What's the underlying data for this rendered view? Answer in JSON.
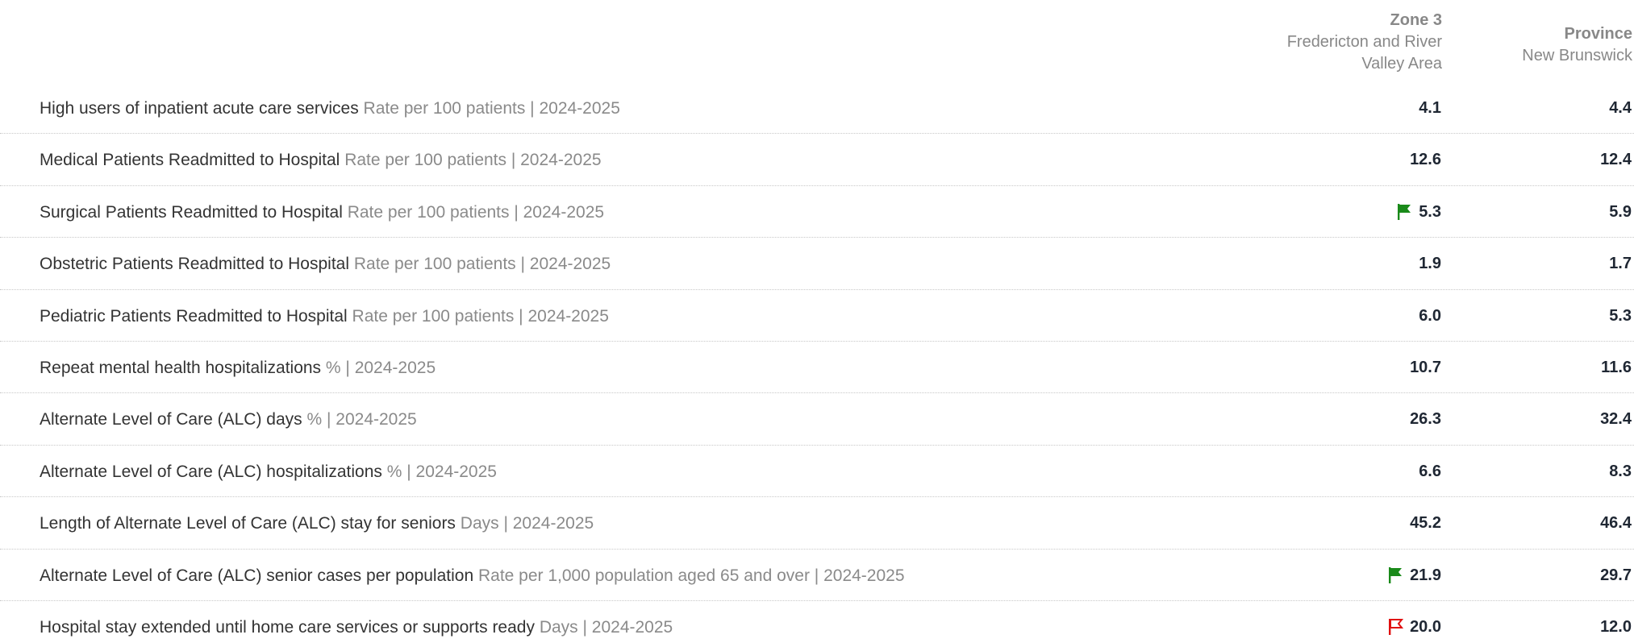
{
  "columns": [
    {
      "title": "Zone 3",
      "subtitle": "Fredericton and River Valley Area"
    },
    {
      "title": "Province",
      "subtitle": "New Brunswick"
    }
  ],
  "rows": [
    {
      "name": "High users of inpatient acute care services",
      "unit": "Rate per 100 patients | 2024-2025",
      "zone": "4.1",
      "province": "4.4"
    },
    {
      "name": "Medical Patients Readmitted to Hospital",
      "unit": "Rate per 100 patients | 2024-2025",
      "zone": "12.6",
      "province": "12.4"
    },
    {
      "name": "Surgical Patients Readmitted to Hospital",
      "unit": "Rate per 100 patients | 2024-2025",
      "zone": "5.3",
      "province": "5.9",
      "flag": "#1a8a1a"
    },
    {
      "name": "Obstetric Patients Readmitted to Hospital",
      "unit": "Rate per 100 patients | 2024-2025",
      "zone": "1.9",
      "province": "1.7"
    },
    {
      "name": "Pediatric Patients Readmitted to Hospital",
      "unit": "Rate per 100 patients | 2024-2025",
      "zone": "6.0",
      "province": "5.3"
    },
    {
      "name": "Repeat mental health hospitalizations",
      "unit": "% | 2024-2025",
      "zone": "10.7",
      "province": "11.6"
    },
    {
      "name": "Alternate Level of Care (ALC) days",
      "unit": "% | 2024-2025",
      "zone": "26.3",
      "province": "32.4"
    },
    {
      "name": "Alternate Level of Care (ALC) hospitalizations",
      "unit": "% | 2024-2025",
      "zone": "6.6",
      "province": "8.3"
    },
    {
      "name": "Length of Alternate Level of Care (ALC) stay for seniors",
      "unit": "Days | 2024-2025",
      "zone": "45.2",
      "province": "46.4"
    },
    {
      "name": "Alternate Level of Care (ALC) senior cases per population",
      "unit": "Rate per 1,000 population aged 65 and over | 2024-2025",
      "zone": "21.9",
      "province": "29.7",
      "flag": "#1a8a1a"
    },
    {
      "name": "Hospital stay extended until home care services or supports ready",
      "unit": "Days | 2024-2025",
      "zone": "20.0",
      "province": "12.0",
      "flag": "#e01010",
      "flag_outline": true
    }
  ]
}
